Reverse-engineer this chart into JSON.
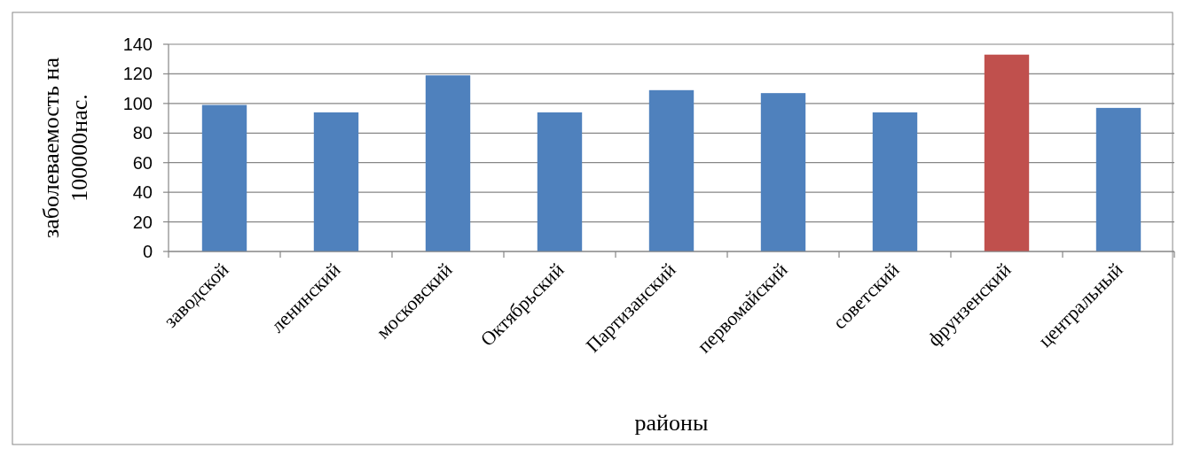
{
  "chart_data": {
    "type": "bar",
    "xlabel": "районы",
    "ylabel": "заболеваемость на 100000нас.",
    "categories": [
      "заводской",
      "ленинский",
      "московский",
      "Октябрьский",
      "Партизанский",
      "первомайский",
      "советский",
      "фрунзенский",
      "центральный"
    ],
    "values": [
      99,
      94,
      119,
      94,
      109,
      107,
      94,
      133,
      97
    ],
    "colors": [
      "#4f81bd",
      "#4f81bd",
      "#4f81bd",
      "#4f81bd",
      "#4f81bd",
      "#4f81bd",
      "#4f81bd",
      "#c0504d",
      "#4f81bd"
    ],
    "ylim": [
      0,
      140
    ],
    "yticks": [
      0,
      20,
      40,
      60,
      80,
      100,
      120,
      140
    ],
    "grid": "y"
  }
}
